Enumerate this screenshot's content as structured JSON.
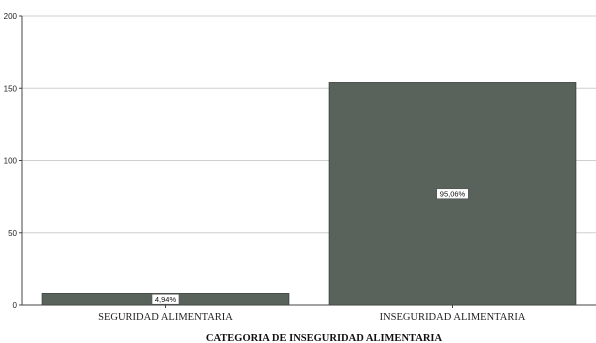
{
  "chart_data": {
    "type": "bar",
    "categories": [
      "SEGURIDAD ALIMENTARIA",
      "INSEGURIDAD ALIMENTARIA"
    ],
    "values": [
      8,
      154
    ],
    "data_labels": [
      "4,94%",
      "95,06%"
    ],
    "xlabel": "CATEGORIA DE INSEGURIDAD ALIMENTARIA",
    "ylabel": "",
    "ylim": [
      0,
      200
    ],
    "yticks": [
      0,
      50,
      100,
      150,
      200
    ],
    "grid": true,
    "bar_color": "#59625b"
  }
}
